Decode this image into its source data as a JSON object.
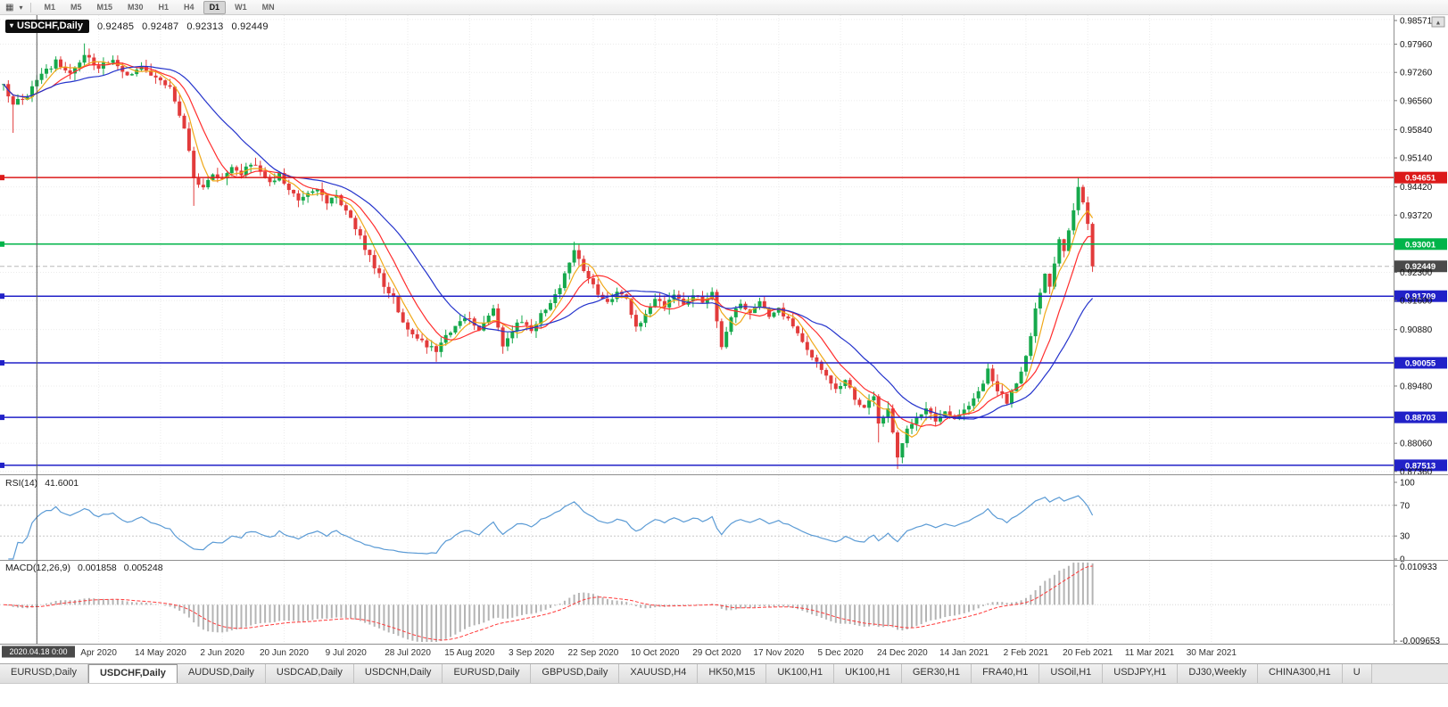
{
  "toolbar": {
    "chart_icon": "candlestick-chart",
    "timeframes": [
      {
        "label": "M1"
      },
      {
        "label": "M5"
      },
      {
        "label": "M15"
      },
      {
        "label": "M30"
      },
      {
        "label": "H1"
      },
      {
        "label": "H4"
      },
      {
        "label": "D1"
      },
      {
        "label": "W1"
      },
      {
        "label": "MN"
      }
    ],
    "active_timeframe": "D1"
  },
  "title": {
    "symbol": "USDCHF,Daily",
    "open": "0.92485",
    "high": "0.92487",
    "low": "0.92313",
    "close": "0.92449"
  },
  "indicators": {
    "rsi_label": "RSI(14)",
    "rsi_value": "41.6001",
    "macd_label": "MACD(12,26,9)",
    "macd_value1": "0.001858",
    "macd_value2": "0.005248"
  },
  "chart_data": {
    "type": "candlestick",
    "title": "USDCHF,Daily",
    "bar_count": 230,
    "seed": 12,
    "noise": 0.0007,
    "up_color": "#16a94c",
    "down_color": "#e23b3b",
    "close_anchors": [
      [
        0,
        0.97
      ],
      [
        2,
        0.9645
      ],
      [
        5,
        0.9672
      ],
      [
        8,
        0.9722
      ],
      [
        11,
        0.9752
      ],
      [
        14,
        0.972
      ],
      [
        17,
        0.9765
      ],
      [
        20,
        0.9738
      ],
      [
        23,
        0.9758
      ],
      [
        26,
        0.972
      ],
      [
        29,
        0.9744
      ],
      [
        32,
        0.9712
      ],
      [
        35,
        0.969
      ],
      [
        38,
        0.9588
      ],
      [
        40,
        0.9468
      ],
      [
        42,
        0.944
      ],
      [
        44,
        0.9478
      ],
      [
        46,
        0.946
      ],
      [
        48,
        0.9496
      ],
      [
        50,
        0.9472
      ],
      [
        52,
        0.9503
      ],
      [
        54,
        0.9481
      ],
      [
        56,
        0.9455
      ],
      [
        58,
        0.9473
      ],
      [
        60,
        0.9441
      ],
      [
        62,
        0.9408
      ],
      [
        64,
        0.9428
      ],
      [
        66,
        0.9443
      ],
      [
        68,
        0.94
      ],
      [
        70,
        0.9418
      ],
      [
        72,
        0.9382
      ],
      [
        74,
        0.934
      ],
      [
        76,
        0.929
      ],
      [
        78,
        0.9245
      ],
      [
        80,
        0.92
      ],
      [
        82,
        0.9163
      ],
      [
        84,
        0.9106
      ],
      [
        86,
        0.9076
      ],
      [
        88,
        0.9058
      ],
      [
        91,
        0.9032
      ],
      [
        94,
        0.9086
      ],
      [
        97,
        0.912
      ],
      [
        100,
        0.9092
      ],
      [
        103,
        0.9136
      ],
      [
        105,
        0.905
      ],
      [
        107,
        0.909
      ],
      [
        109,
        0.9112
      ],
      [
        111,
        0.9086
      ],
      [
        113,
        0.9126
      ],
      [
        115,
        0.9156
      ],
      [
        117,
        0.9192
      ],
      [
        119,
        0.9256
      ],
      [
        120,
        0.929
      ],
      [
        121,
        0.9262
      ],
      [
        123,
        0.9216
      ],
      [
        125,
        0.918
      ],
      [
        127,
        0.915
      ],
      [
        129,
        0.9186
      ],
      [
        131,
        0.916
      ],
      [
        133,
        0.909
      ],
      [
        135,
        0.9132
      ],
      [
        137,
        0.917
      ],
      [
        139,
        0.9148
      ],
      [
        141,
        0.9172
      ],
      [
        143,
        0.915
      ],
      [
        145,
        0.918
      ],
      [
        147,
        0.9156
      ],
      [
        149,
        0.9178
      ],
      [
        151,
        0.905
      ],
      [
        153,
        0.912
      ],
      [
        155,
        0.9158
      ],
      [
        157,
        0.913
      ],
      [
        159,
        0.9156
      ],
      [
        161,
        0.9118
      ],
      [
        163,
        0.914
      ],
      [
        165,
        0.911
      ],
      [
        167,
        0.9076
      ],
      [
        169,
        0.904
      ],
      [
        171,
        0.901
      ],
      [
        173,
        0.8976
      ],
      [
        175,
        0.8936
      ],
      [
        177,
        0.896
      ],
      [
        179,
        0.8916
      ],
      [
        181,
        0.889
      ],
      [
        183,
        0.8926
      ],
      [
        184,
        0.8862
      ],
      [
        186,
        0.889
      ],
      [
        188,
        0.8776
      ],
      [
        190,
        0.884
      ],
      [
        192,
        0.8866
      ],
      [
        194,
        0.889
      ],
      [
        196,
        0.886
      ],
      [
        198,
        0.8886
      ],
      [
        200,
        0.8862
      ],
      [
        202,
        0.8888
      ],
      [
        204,
        0.892
      ],
      [
        206,
        0.8958
      ],
      [
        207,
        0.8986
      ],
      [
        209,
        0.894
      ],
      [
        211,
        0.8906
      ],
      [
        213,
        0.8952
      ],
      [
        215,
        0.9016
      ],
      [
        216,
        0.9078
      ],
      [
        217,
        0.9136
      ],
      [
        218,
        0.918
      ],
      [
        219,
        0.9228
      ],
      [
        220,
        0.9198
      ],
      [
        221,
        0.9252
      ],
      [
        222,
        0.9306
      ],
      [
        223,
        0.9282
      ],
      [
        224,
        0.9336
      ],
      [
        225,
        0.9388
      ],
      [
        226,
        0.9448
      ],
      [
        227,
        0.941
      ],
      [
        228,
        0.9356
      ],
      [
        229,
        0.92449
      ]
    ],
    "wick_events": [
      {
        "bar": 2,
        "low": 0.9576
      },
      {
        "bar": 17,
        "high": 0.9798
      },
      {
        "bar": 40,
        "low": 0.9395
      },
      {
        "bar": 91,
        "low": 0.9008
      },
      {
        "bar": 105,
        "low": 0.9028
      },
      {
        "bar": 120,
        "high": 0.9306
      },
      {
        "bar": 151,
        "low": 0.9038
      },
      {
        "bar": 184,
        "low": 0.8808
      },
      {
        "bar": 188,
        "low": 0.8742
      },
      {
        "bar": 207,
        "high": 0.9004
      },
      {
        "bar": 226,
        "high": 0.9466
      },
      {
        "bar": 229,
        "low": 0.92313
      }
    ],
    "ma": {
      "gold_period": 5,
      "gold_color": "#f0a818",
      "red_period": 10,
      "red_color": "#ff2e2e",
      "blue_period": 21,
      "blue_color": "#2433cc"
    },
    "price_axis": {
      "max": 0.9868,
      "min": 0.8729,
      "labels": [
        "0.98571",
        "0.97960",
        "0.97260",
        "0.96560",
        "0.95840",
        "0.95140",
        "0.94420",
        "0.93720",
        "0.92300",
        "0.91600",
        "0.90880",
        "0.89480",
        "0.88060",
        "0.87360"
      ]
    },
    "hlines": [
      {
        "price": 0.94651,
        "label": "0.94651",
        "color": "#dc1a1a"
      },
      {
        "price": 0.93001,
        "label": "0.93001",
        "color": "#00b44a"
      },
      {
        "price": 0.91709,
        "label": "0.91709",
        "color": "#2121c8"
      },
      {
        "price": 0.90055,
        "label": "0.90055",
        "color": "#2121c8"
      },
      {
        "price": 0.88703,
        "label": "0.88703",
        "color": "#2121c8"
      },
      {
        "price": 0.87513,
        "label": "0.87513",
        "color": "#2121c8"
      }
    ],
    "current_price": {
      "price": 0.92449,
      "label": "0.92449",
      "box_color": "#4a4a4a",
      "line_color": "#b8b8b8"
    },
    "date_labels": [
      "2020.04.18 0:00",
      "Apr 2020",
      "14 May 2020",
      "2 Jun 2020",
      "20 Jun 2020",
      "9 Jul 2020",
      "28 Jul 2020",
      "15 Aug 2020",
      "3 Sep 2020",
      "22 Sep 2020",
      "10 Oct 2020",
      "29 Oct 2020",
      "17 Nov 2020",
      "5 Dec 2020",
      "24 Dec 2020",
      "14 Jan 2021",
      "2 Feb 2021",
      "20 Feb 2021",
      "11 Mar 2021",
      "30 Mar 2021"
    ],
    "label_start_bar": 7,
    "label_step": 13,
    "crosshair_bar": 7,
    "rsi": {
      "period": 14,
      "levels": [
        70,
        30
      ],
      "axis_labels": [
        "100",
        "70",
        "30",
        "0"
      ],
      "color": "#5b9bd5"
    },
    "macd": {
      "fast": 12,
      "slow": 26,
      "signal": 9,
      "axis_max": "0.010933",
      "axis_min": "-0.009653",
      "hist_color": "#b4b4b4",
      "signal_color": "#ff3b3b"
    }
  },
  "tabs": {
    "active_index": 1,
    "items": [
      {
        "label": "EURUSD,Daily"
      },
      {
        "label": "USDCHF,Daily"
      },
      {
        "label": "AUDUSD,Daily"
      },
      {
        "label": "USDCAD,Daily"
      },
      {
        "label": "USDCNH,Daily"
      },
      {
        "label": "EURUSD,Daily"
      },
      {
        "label": "GBPUSD,Daily"
      },
      {
        "label": "XAUUSD,H4"
      },
      {
        "label": "HK50,M15"
      },
      {
        "label": "UK100,H1"
      },
      {
        "label": "UK100,H1"
      },
      {
        "label": "GER30,H1"
      },
      {
        "label": "FRA40,H1"
      },
      {
        "label": "USOil,H1"
      },
      {
        "label": "USDJPY,H1"
      },
      {
        "label": "DJ30,Weekly"
      },
      {
        "label": "CHINA300,H1"
      },
      {
        "label": "U"
      }
    ]
  }
}
